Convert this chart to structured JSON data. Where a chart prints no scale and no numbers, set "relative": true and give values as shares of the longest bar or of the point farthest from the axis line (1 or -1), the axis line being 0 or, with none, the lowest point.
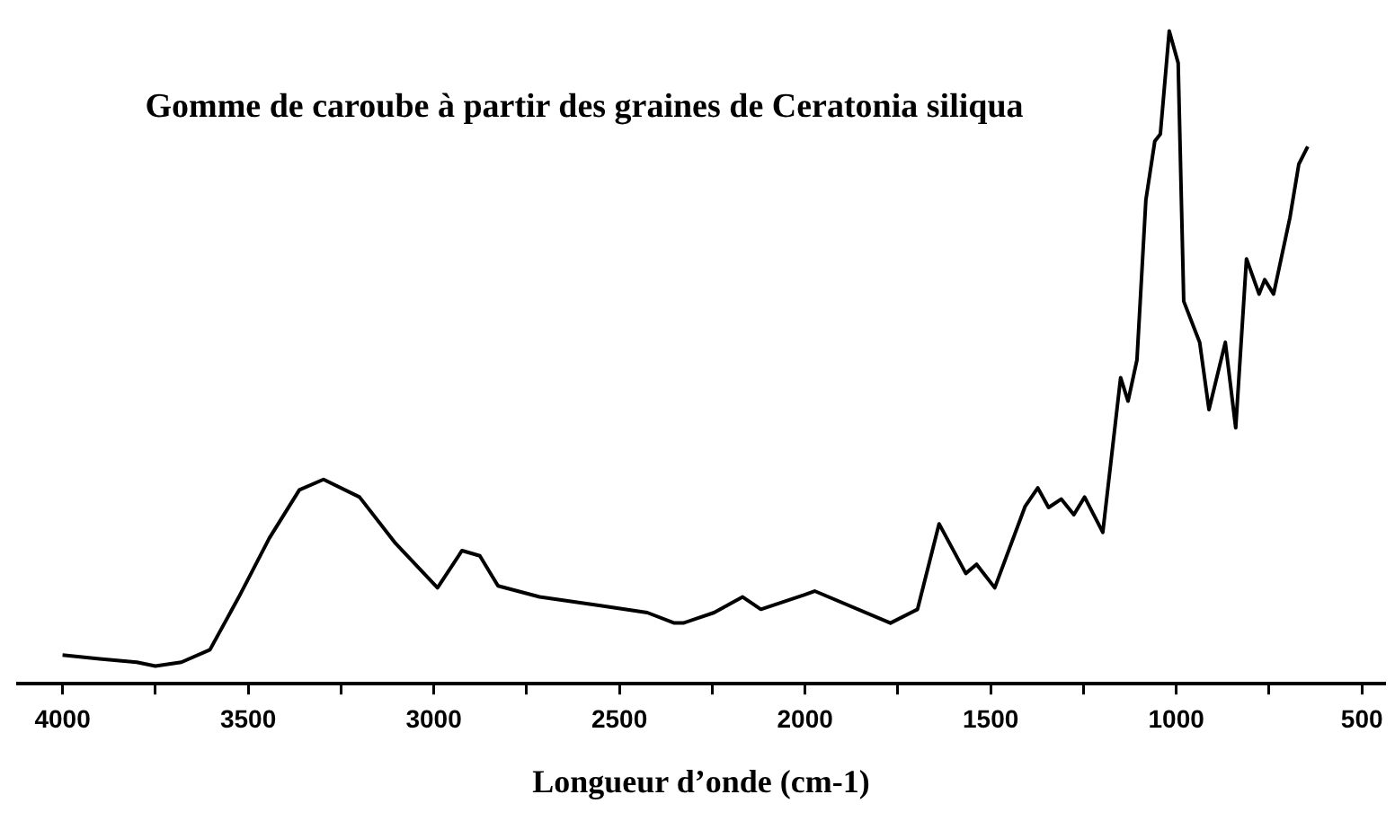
{
  "chart_data": {
    "type": "line",
    "title": "Gomme de caroube à partir des graines de Ceratonia siliqua",
    "xlabel": "Longueur d’onde (cm-1)",
    "relative": true,
    "color": "#000000",
    "grid": false,
    "legend": false,
    "marker": "none",
    "line_style": "solid",
    "xlim": [
      4120,
      440
    ],
    "xticks": [
      4000,
      {
        "value": 3750,
        "label": null
      },
      3500,
      {
        "value": 3250,
        "label": null
      },
      3000,
      {
        "value": 2750,
        "label": null
      },
      2500,
      {
        "value": 2250,
        "label": null
      },
      2000,
      {
        "value": 1750,
        "label": null
      },
      1500,
      {
        "value": 1250,
        "label": null
      },
      1000,
      {
        "value": 750,
        "label": null
      },
      500
    ],
    "x": [
      4000,
      3900,
      3800,
      3750,
      3680,
      3603,
      3525,
      3443,
      3362,
      3297,
      3200,
      3103,
      2990,
      2924,
      2876,
      2827,
      2715,
      2555,
      2425,
      2352,
      2328,
      2245,
      2168,
      2119,
      2003,
      1974,
      1770,
      1697,
      1639,
      1567,
      1538,
      1489,
      1407,
      1373,
      1344,
      1310,
      1276,
      1247,
      1198,
      1150,
      1130,
      1106,
      1082,
      1058,
      1043,
      1019,
      995,
      980,
      937,
      912,
      868,
      840,
      811,
      777,
      762,
      738,
      694,
      670,
      646
    ],
    "values": [
      0.044,
      0.038,
      0.033,
      0.027,
      0.033,
      0.052,
      0.133,
      0.223,
      0.297,
      0.313,
      0.286,
      0.215,
      0.147,
      0.204,
      0.196,
      0.15,
      0.133,
      0.12,
      0.109,
      0.093,
      0.093,
      0.109,
      0.133,
      0.114,
      0.136,
      0.142,
      0.093,
      0.114,
      0.245,
      0.169,
      0.183,
      0.147,
      0.272,
      0.3,
      0.27,
      0.283,
      0.259,
      0.286,
      0.232,
      0.469,
      0.433,
      0.496,
      0.741,
      0.831,
      0.842,
      1.0,
      0.951,
      0.586,
      0.523,
      0.42,
      0.523,
      0.392,
      0.651,
      0.597,
      0.619,
      0.597,
      0.714,
      0.796,
      0.823
    ]
  }
}
